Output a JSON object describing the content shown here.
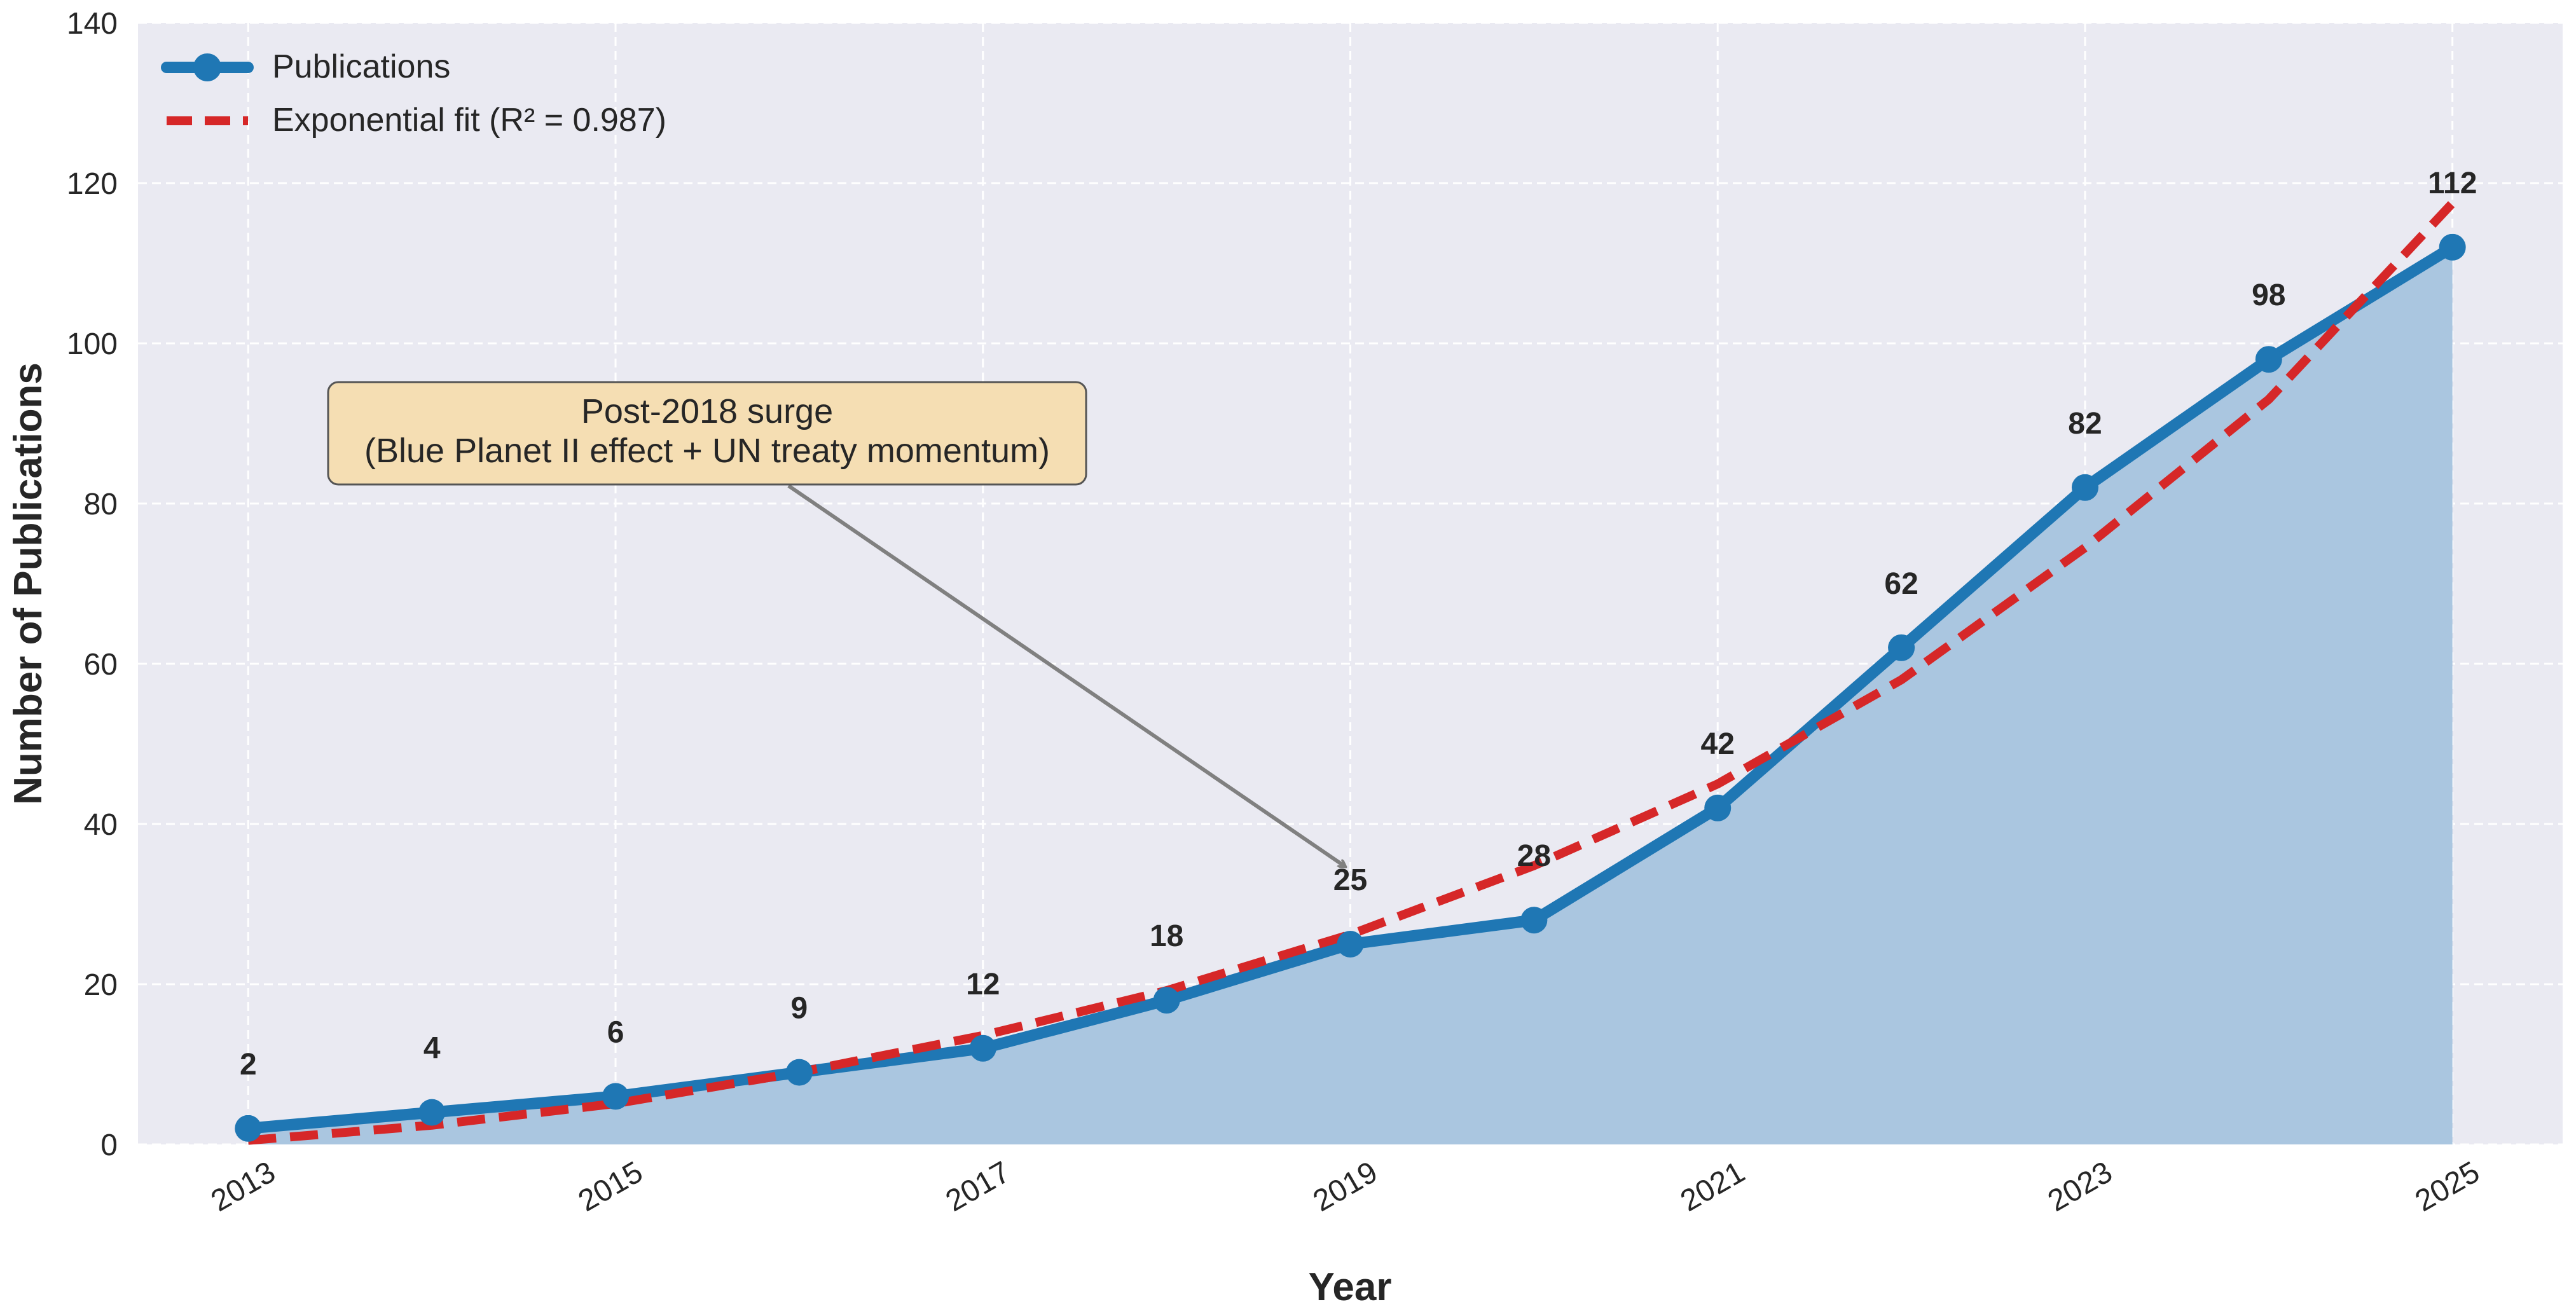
{
  "chart_data": {
    "type": "line",
    "title": "",
    "xlabel": "Year",
    "ylabel": "Number of Publications",
    "x": [
      2013,
      2014,
      2015,
      2016,
      2017,
      2018,
      2019,
      2020,
      2021,
      2022,
      2023,
      2024,
      2025
    ],
    "xticks": [
      "2013",
      "2015",
      "2017",
      "2019",
      "2021",
      "2023",
      "2025"
    ],
    "yticks": [
      "0",
      "20",
      "40",
      "60",
      "80",
      "100",
      "120",
      "140"
    ],
    "xlim": [
      2012.4,
      2025.6
    ],
    "ylim": [
      0,
      140
    ],
    "grid": true,
    "legend_position": "top-left",
    "series": [
      {
        "name": "Publications",
        "style": "line-with-markers-and-area-fill",
        "color": "#1f77b4",
        "fill_color": "#aac6e0",
        "values": [
          2,
          4,
          6,
          9,
          12,
          18,
          25,
          28,
          42,
          62,
          82,
          98,
          112
        ],
        "data_labels": [
          "2",
          "4",
          "6",
          "9",
          "12",
          "18",
          "25",
          "28",
          "42",
          "62",
          "82",
          "98",
          "112"
        ]
      },
      {
        "name": "Exponential fit (R² = 0.987)",
        "style": "dashed-line",
        "color": "#d62728",
        "values": [
          0.5,
          2.4,
          5.1,
          9.0,
          13.6,
          19.2,
          26.2,
          34.8,
          45.0,
          58.0,
          74.5,
          93.0,
          117.5
        ]
      }
    ],
    "annotation": {
      "line1": "Post-2018 surge",
      "line2": "(Blue Planet II effect + UN treaty momentum)",
      "box_color": "#f5deb3",
      "arrow_target": {
        "x": 2019,
        "y": 35
      }
    },
    "colors": {
      "plot_background": "#eaeaf2",
      "grid": "#ffffff",
      "text": "#262626"
    }
  }
}
